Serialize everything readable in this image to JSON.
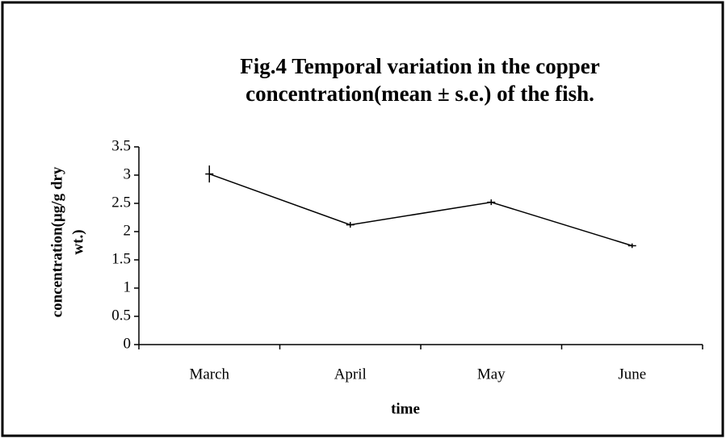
{
  "chart_data": {
    "type": "line",
    "title": [
      "Fig.4  Temporal variation in the copper",
      "concentration(mean ± s.e.) of the fish."
    ],
    "x_label": "time",
    "y_label": [
      "concentration(µg/g dry",
      "wt.)"
    ],
    "categories": [
      "March",
      "April",
      "May",
      "June"
    ],
    "series": [
      {
        "color": "#000000",
        "values": [
          3.02,
          2.12,
          2.52,
          1.75
        ],
        "errors": [
          0.15,
          0.05,
          0.05,
          0.04
        ]
      }
    ],
    "ylim": [
      0,
      3.5
    ],
    "yticks": [
      0,
      0.5,
      1,
      1.5,
      2,
      2.5,
      3,
      3.5
    ]
  }
}
